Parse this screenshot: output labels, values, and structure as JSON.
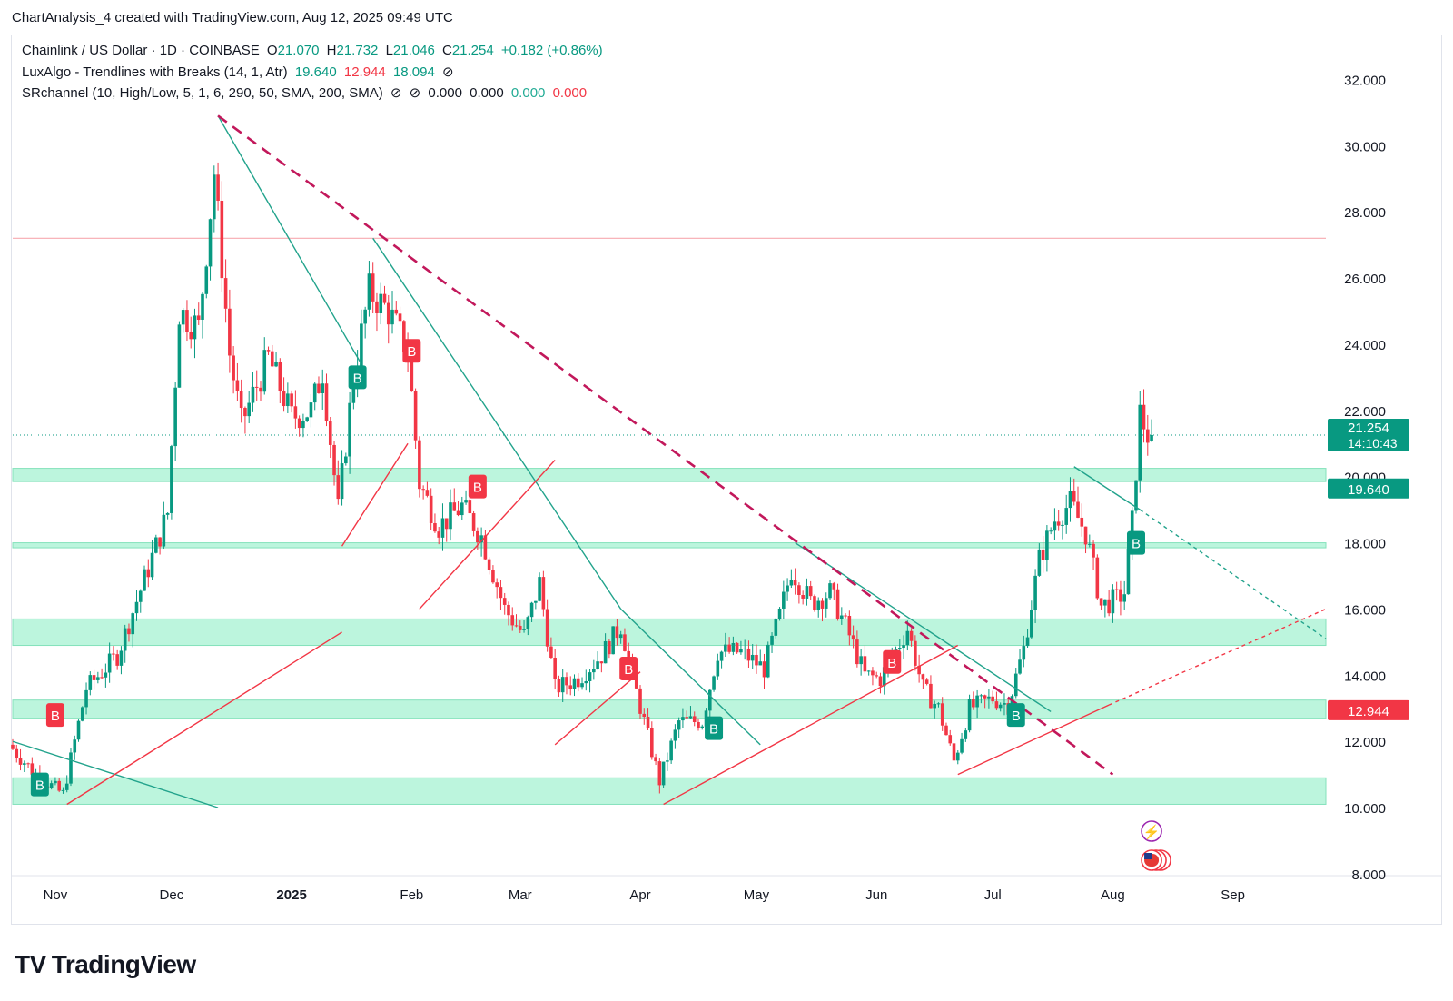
{
  "header": {
    "credit": "ChartAnalysis_4 created with TradingView.com, Aug 12, 2025 09:49 UTC"
  },
  "legend": {
    "symbol": "Chainlink / US Dollar · 1D · COINBASE",
    "open_label": "O",
    "open": "21.070",
    "high_label": "H",
    "high": "21.732",
    "low_label": "L",
    "low": "21.046",
    "close_label": "C",
    "close": "21.254",
    "change": "+0.182 (+0.86%)",
    "ind1_name": "LuxAlgo - Trendlines with Breaks (14, 1, Atr)",
    "ind1_v1": "19.640",
    "ind1_v2": "12.944",
    "ind1_v3": "18.094",
    "ind2_name": "SRchannel (10, High/Low, 5, 1, 6, 290, 50, SMA, 200, SMA)",
    "ind2_v1": "0.000",
    "ind2_v2": "0.000",
    "ind2_v3": "0.000",
    "ind2_v4": "0.000"
  },
  "brand": {
    "name": "TradingView",
    "logo": "TV"
  },
  "colors": {
    "up": "#089981",
    "down": "#f23645",
    "zone": "#b9f5dc",
    "zone_edge": "#7ee0b8",
    "trend": "#22a38c",
    "break_dash": "#c2185b",
    "resistance": "#f7a9b0"
  },
  "chart_data": {
    "type": "candlestick",
    "title": "Chainlink / US Dollar · 1D · COINBASE",
    "x_tick_labels": [
      "Nov",
      "Dec",
      "2025",
      "Feb",
      "Mar",
      "Apr",
      "May",
      "Jun",
      "Jul",
      "Aug",
      "Sep"
    ],
    "x_tick_dates": [
      "2024-11-01",
      "2024-12-01",
      "2025-01-01",
      "2025-02-01",
      "2025-03-01",
      "2025-04-01",
      "2025-05-01",
      "2025-06-01",
      "2025-07-01",
      "2025-08-01",
      "2025-09-01"
    ],
    "y_ticks": [
      "32.000",
      "30.000",
      "28.000",
      "26.000",
      "24.000",
      "22.000",
      "20.000",
      "18.000",
      "16.000",
      "14.000",
      "12.000",
      "10.000",
      "8.000"
    ],
    "ylim": [
      8,
      33.3
    ],
    "xlim": [
      "2024-10-21",
      "2025-09-25"
    ],
    "last_price": {
      "value": 21.254,
      "label": "21.254",
      "countdown": "14:10:43"
    },
    "price_tags": [
      {
        "value": 19.64,
        "label": "19.640",
        "color": "#089981"
      },
      {
        "value": 12.944,
        "label": "12.944",
        "color": "#f23645"
      }
    ],
    "support_resistance_zones": [
      {
        "low": 19.85,
        "high": 20.25
      },
      {
        "low": 17.85,
        "high": 18.0
      },
      {
        "low": 14.9,
        "high": 15.7
      },
      {
        "low": 12.7,
        "high": 13.25
      },
      {
        "low": 10.1,
        "high": 10.9
      }
    ],
    "resistance_line": 27.2,
    "major_breakline": {
      "from": {
        "date": "2024-12-13",
        "value": 30.9
      },
      "to": {
        "date": "2025-08-01",
        "value": 11.0
      }
    },
    "trendlines": [
      {
        "kind": "down",
        "from": {
          "date": "2024-10-21",
          "value": 12.0
        },
        "to": {
          "date": "2024-12-13",
          "value": 10.0
        },
        "dashed_ext": false
      },
      {
        "kind": "down",
        "from": {
          "date": "2024-12-13",
          "value": 30.9
        },
        "to": {
          "date": "2025-01-19",
          "value": 23.4
        },
        "dashed_ext": false
      },
      {
        "kind": "down",
        "from": {
          "date": "2025-01-22",
          "value": 27.2
        },
        "to": {
          "date": "2025-03-27",
          "value": 16.0
        },
        "dashed_ext": false
      },
      {
        "kind": "down",
        "from": {
          "date": "2025-03-27",
          "value": 16.0
        },
        "to": {
          "date": "2025-05-02",
          "value": 11.9
        },
        "dashed_ext": false
      },
      {
        "kind": "down",
        "from": {
          "date": "2025-05-11",
          "value": 18.0
        },
        "to": {
          "date": "2025-07-16",
          "value": 12.9
        },
        "dashed_ext": false
      },
      {
        "kind": "down",
        "from": {
          "date": "2025-07-22",
          "value": 20.3
        },
        "to": {
          "date": "2025-08-08",
          "value": 19.0
        },
        "dashed_ext": true,
        "ext_to": {
          "date": "2025-09-25",
          "value": 15.1
        }
      },
      {
        "kind": "up",
        "from": {
          "date": "2024-11-04",
          "value": 10.1
        },
        "to": {
          "date": "2025-01-14",
          "value": 15.3
        },
        "dashed_ext": false
      },
      {
        "kind": "up",
        "from": {
          "date": "2025-01-14",
          "value": 17.9
        },
        "to": {
          "date": "2025-01-31",
          "value": 21.0
        },
        "dashed_ext": false
      },
      {
        "kind": "up",
        "from": {
          "date": "2025-02-03",
          "value": 16.0
        },
        "to": {
          "date": "2025-03-10",
          "value": 20.5
        },
        "dashed_ext": false
      },
      {
        "kind": "up",
        "from": {
          "date": "2025-03-10",
          "value": 11.9
        },
        "to": {
          "date": "2025-04-01",
          "value": 14.1
        },
        "dashed_ext": false
      },
      {
        "kind": "up",
        "from": {
          "date": "2025-04-07",
          "value": 10.1
        },
        "to": {
          "date": "2025-06-22",
          "value": 14.9
        },
        "dashed_ext": false
      },
      {
        "kind": "up",
        "from": {
          "date": "2025-06-22",
          "value": 11.0
        },
        "to": {
          "date": "2025-07-31",
          "value": 13.1
        },
        "dashed_ext": true,
        "ext_to": {
          "date": "2025-09-25",
          "value": 16.0
        }
      }
    ],
    "break_labels": [
      {
        "date": "2024-10-28",
        "value": 10.7,
        "text": "B",
        "side": "up"
      },
      {
        "date": "2024-11-01",
        "value": 12.8,
        "text": "B",
        "side": "down"
      },
      {
        "date": "2025-01-18",
        "value": 23.0,
        "text": "B",
        "side": "up"
      },
      {
        "date": "2025-02-01",
        "value": 23.8,
        "text": "B",
        "side": "down"
      },
      {
        "date": "2025-02-18",
        "value": 19.7,
        "text": "B",
        "side": "down"
      },
      {
        "date": "2025-03-29",
        "value": 14.2,
        "text": "B",
        "side": "down"
      },
      {
        "date": "2025-04-20",
        "value": 12.4,
        "text": "B",
        "side": "up"
      },
      {
        "date": "2025-06-05",
        "value": 14.4,
        "text": "B",
        "side": "down"
      },
      {
        "date": "2025-07-07",
        "value": 12.8,
        "text": "B",
        "side": "up"
      },
      {
        "date": "2025-08-07",
        "value": 18.0,
        "text": "B",
        "side": "up"
      }
    ],
    "event_markers": [
      {
        "date": "2025-08-11",
        "kind": "bolt"
      },
      {
        "date": "2025-08-11",
        "kind": "us-flag"
      }
    ],
    "ohlc_anchor_closes": [
      [
        "2024-10-21",
        11.9
      ],
      [
        "2024-10-28",
        11.0
      ],
      [
        "2024-11-04",
        10.4
      ],
      [
        "2024-11-10",
        13.6
      ],
      [
        "2024-11-18",
        14.6
      ],
      [
        "2024-11-25",
        16.9
      ],
      [
        "2024-12-01",
        18.9
      ],
      [
        "2024-12-04",
        25.0
      ],
      [
        "2024-12-09",
        24.5
      ],
      [
        "2024-12-13",
        29.2
      ],
      [
        "2024-12-17",
        23.7
      ],
      [
        "2024-12-20",
        21.6
      ],
      [
        "2024-12-27",
        23.6
      ],
      [
        "2025-01-02",
        21.8
      ],
      [
        "2025-01-07",
        22.0
      ],
      [
        "2025-01-10",
        23.2
      ],
      [
        "2025-01-14",
        19.0
      ],
      [
        "2025-01-18",
        23.0
      ],
      [
        "2025-01-22",
        25.6
      ],
      [
        "2025-01-27",
        25.0
      ],
      [
        "2025-02-01",
        23.8
      ],
      [
        "2025-02-04",
        19.8
      ],
      [
        "2025-02-09",
        18.5
      ],
      [
        "2025-02-15",
        19.1
      ],
      [
        "2025-02-20",
        18.2
      ],
      [
        "2025-02-26",
        16.0
      ],
      [
        "2025-03-03",
        15.2
      ],
      [
        "2025-03-07",
        16.8
      ],
      [
        "2025-03-11",
        13.6
      ],
      [
        "2025-03-17",
        13.9
      ],
      [
        "2025-03-23",
        14.6
      ],
      [
        "2025-03-28",
        15.5
      ],
      [
        "2025-04-01",
        13.5
      ],
      [
        "2025-04-07",
        10.8
      ],
      [
        "2025-04-12",
        12.6
      ],
      [
        "2025-04-18",
        12.6
      ],
      [
        "2025-04-22",
        14.7
      ],
      [
        "2025-04-28",
        14.7
      ],
      [
        "2025-05-04",
        14.2
      ],
      [
        "2025-05-08",
        15.8
      ],
      [
        "2025-05-11",
        17.2
      ],
      [
        "2025-05-16",
        16.2
      ],
      [
        "2025-05-21",
        16.5
      ],
      [
        "2025-05-25",
        15.5
      ],
      [
        "2025-05-30",
        14.0
      ],
      [
        "2025-06-03",
        13.9
      ],
      [
        "2025-06-10",
        15.4
      ],
      [
        "2025-06-14",
        13.6
      ],
      [
        "2025-06-18",
        13.0
      ],
      [
        "2025-06-22",
        11.4
      ],
      [
        "2025-06-26",
        13.0
      ],
      [
        "2025-07-02",
        13.3
      ],
      [
        "2025-07-06",
        13.1
      ],
      [
        "2025-07-10",
        14.8
      ],
      [
        "2025-07-14",
        17.5
      ],
      [
        "2025-07-18",
        18.7
      ],
      [
        "2025-07-22",
        19.2
      ],
      [
        "2025-07-26",
        18.3
      ],
      [
        "2025-07-30",
        16.1
      ],
      [
        "2025-08-03",
        16.3
      ],
      [
        "2025-08-05",
        16.5
      ],
      [
        "2025-08-07",
        18.6
      ],
      [
        "2025-08-09",
        21.9
      ],
      [
        "2025-08-11",
        21.25
      ]
    ]
  }
}
